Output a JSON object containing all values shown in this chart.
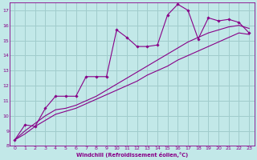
{
  "xlabel": "Windchill (Refroidissement éolien,°C)",
  "xlim": [
    -0.5,
    23.5
  ],
  "ylim": [
    8,
    17.5
  ],
  "xticks": [
    0,
    1,
    2,
    3,
    4,
    5,
    6,
    7,
    8,
    9,
    10,
    11,
    12,
    13,
    14,
    15,
    16,
    17,
    18,
    19,
    20,
    21,
    22,
    23
  ],
  "yticks": [
    8,
    9,
    10,
    11,
    12,
    13,
    14,
    15,
    16,
    17
  ],
  "bg_color": "#c2e8e8",
  "grid_color": "#a0cccc",
  "line_color": "#880088",
  "line1_x": [
    0,
    1,
    2,
    3,
    4,
    5,
    6,
    7,
    8,
    9,
    10,
    11,
    12,
    13,
    14,
    15,
    16,
    17,
    18,
    19,
    20,
    21,
    22,
    23
  ],
  "line1_y": [
    8.4,
    8.8,
    9.3,
    9.7,
    10.1,
    10.3,
    10.5,
    10.8,
    11.1,
    11.4,
    11.7,
    12.0,
    12.3,
    12.7,
    13.0,
    13.3,
    13.7,
    14.0,
    14.3,
    14.6,
    14.9,
    15.2,
    15.5,
    15.4
  ],
  "line2_x": [
    0,
    1,
    2,
    3,
    4,
    5,
    6,
    7,
    8,
    9,
    10,
    11,
    12,
    13,
    14,
    15,
    16,
    17,
    18,
    19,
    20,
    21,
    22,
    23
  ],
  "line2_y": [
    8.4,
    9.0,
    9.5,
    10.0,
    10.4,
    10.5,
    10.7,
    11.0,
    11.3,
    11.7,
    12.1,
    12.5,
    12.9,
    13.3,
    13.7,
    14.1,
    14.5,
    14.9,
    15.2,
    15.5,
    15.7,
    15.9,
    16.0,
    15.8
  ],
  "line3_x": [
    0,
    1,
    2,
    3,
    4,
    5,
    6,
    7,
    8,
    9,
    10,
    11,
    12,
    13,
    14,
    15,
    16,
    17,
    18,
    19,
    20,
    21,
    22,
    23
  ],
  "line3_y": [
    8.4,
    9.4,
    9.3,
    10.5,
    11.3,
    11.3,
    11.3,
    12.6,
    12.6,
    12.6,
    15.7,
    15.2,
    14.6,
    14.6,
    14.7,
    16.7,
    17.4,
    17.0,
    15.1,
    16.5,
    16.3,
    16.4,
    16.2,
    15.5
  ]
}
